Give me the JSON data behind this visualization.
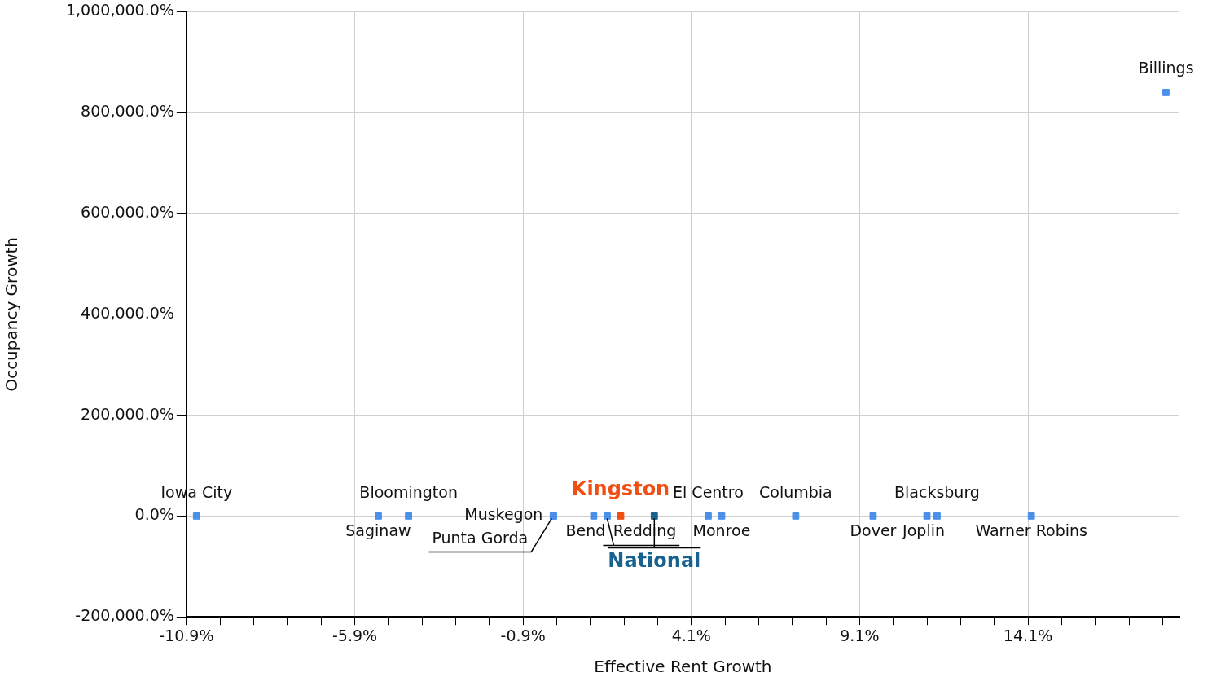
{
  "chart_data": {
    "type": "scatter",
    "xlabel": "Effective Rent Growth",
    "ylabel": "Occupancy Growth",
    "series": [
      {
        "color": "#4a8fe8",
        "x": [
          -10.6,
          -5.2,
          -4.3,
          0.0,
          0.0,
          1.2,
          1.6,
          4.6,
          5.0,
          7.2,
          9.5,
          11.1,
          11.4,
          14.2,
          18.2
        ],
        "values": [
          0,
          0,
          0,
          0,
          0,
          0,
          0,
          0,
          0,
          0,
          0,
          0,
          0,
          0,
          840000
        ]
      },
      {
        "name": "Kingston",
        "color": "#f04e13",
        "x": [
          2.0
        ],
        "values": [
          0
        ]
      },
      {
        "name": "National",
        "color": "#17628f",
        "x": [
          3.0
        ],
        "values": [
          0
        ]
      }
    ],
    "annotations": [
      {
        "text": "Iowa City",
        "x": -10.6,
        "y": 0
      },
      {
        "text": "Saginaw",
        "x": -5.2,
        "y": 0
      },
      {
        "text": "Bloomington",
        "x": -4.3,
        "y": 0
      },
      {
        "text": "Muskegon",
        "x": 0.0,
        "y": 0
      },
      {
        "text": "Punta Gorda",
        "x": 0.0,
        "y": 0
      },
      {
        "text": "Bend",
        "x": 1.2,
        "y": 0
      },
      {
        "text": "Redding",
        "x": 1.6,
        "y": 0
      },
      {
        "text": "El Centro",
        "x": 4.6,
        "y": 0
      },
      {
        "text": "Monroe",
        "x": 5.0,
        "y": 0
      },
      {
        "text": "Columbia",
        "x": 7.2,
        "y": 0
      },
      {
        "text": "Dover",
        "x": 9.5,
        "y": 0
      },
      {
        "text": "Joplin",
        "x": 11.1,
        "y": 0
      },
      {
        "text": "Blacksburg",
        "x": 11.4,
        "y": 0
      },
      {
        "text": "Warner Robins",
        "x": 14.2,
        "y": 0
      },
      {
        "text": "Billings",
        "x": 18.2,
        "y": 840000
      }
    ],
    "xlim": [
      -10.9,
      18.6
    ],
    "xticks": [
      {
        "value": -10.9,
        "label": "-10.9%"
      },
      {
        "value": -9.9,
        "label": null
      },
      {
        "value": -8.9,
        "label": null
      },
      {
        "value": -7.9,
        "label": null
      },
      {
        "value": -6.9,
        "label": null
      },
      {
        "value": -5.9,
        "label": "-5.9%"
      },
      {
        "value": -4.9,
        "label": null
      },
      {
        "value": -3.9,
        "label": null
      },
      {
        "value": -2.9,
        "label": null
      },
      {
        "value": -1.9,
        "label": null
      },
      {
        "value": -0.9,
        "label": "-0.9%"
      },
      {
        "value": 0.1,
        "label": null
      },
      {
        "value": 1.1,
        "label": null
      },
      {
        "value": 2.1,
        "label": null
      },
      {
        "value": 3.1,
        "label": null
      },
      {
        "value": 4.1,
        "label": "4.1%"
      },
      {
        "value": 5.1,
        "label": null
      },
      {
        "value": 6.1,
        "label": null
      },
      {
        "value": 7.1,
        "label": null
      },
      {
        "value": 8.1,
        "label": null
      },
      {
        "value": 9.1,
        "label": "9.1%"
      },
      {
        "value": 10.1,
        "label": null
      },
      {
        "value": 11.1,
        "label": null
      },
      {
        "value": 12.1,
        "label": null
      },
      {
        "value": 13.1,
        "label": null
      },
      {
        "value": 14.1,
        "label": "14.1%"
      },
      {
        "value": 15.1,
        "label": null
      },
      {
        "value": 16.1,
        "label": null
      },
      {
        "value": 17.1,
        "label": null
      },
      {
        "value": 18.1,
        "label": null
      }
    ],
    "ylim": [
      -200000,
      1000000
    ],
    "yticks": [
      {
        "value": -200000,
        "label": "-200,000.0%"
      },
      {
        "value": 0,
        "label": "0.0%"
      },
      {
        "value": 200000,
        "label": "200,000.0%"
      },
      {
        "value": 400000,
        "label": "400,000.0%"
      },
      {
        "value": 600000,
        "label": "600,000.0%"
      },
      {
        "value": 800000,
        "label": "800,000.0%"
      },
      {
        "value": 1000000,
        "label": "1,000,000.0%"
      }
    ],
    "grid": true,
    "legend": false,
    "marker": "square"
  }
}
